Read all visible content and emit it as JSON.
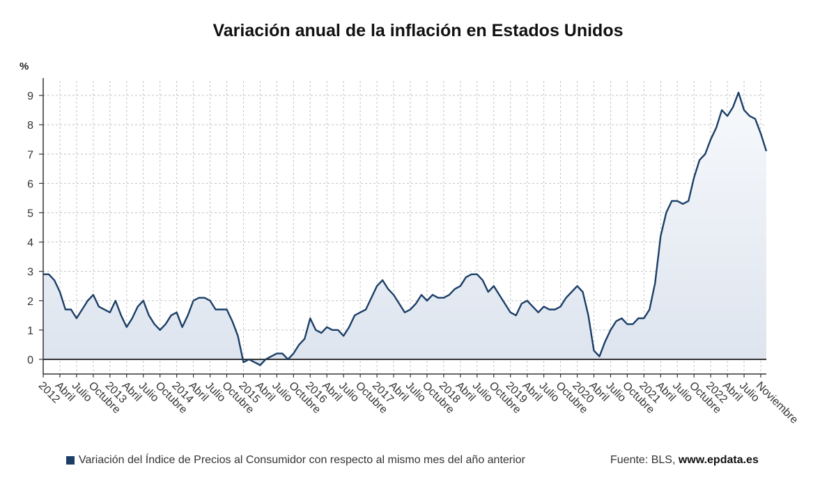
{
  "chart_data": {
    "type": "area",
    "title": "Variación anual de la inflación en Estados Unidos",
    "ylabel": "%",
    "xlabel": "",
    "ylim": [
      -0.5,
      9.5
    ],
    "y_ticks": [
      0,
      1,
      2,
      3,
      4,
      5,
      6,
      7,
      8,
      9
    ],
    "grid": true,
    "legend_placement": "bottom-left",
    "x_start": "2012-01",
    "x_end": "2022-11",
    "x_tick_labels": [
      "2012",
      "Abril",
      "Julio",
      "Octubre",
      "2013",
      "Abril",
      "Julio",
      "Octubre",
      "2014",
      "Abril",
      "Julio",
      "Octubre",
      "2015",
      "Abril",
      "Julio",
      "Octubre",
      "2016",
      "Abril",
      "Julio",
      "Octubre",
      "2017",
      "Abril",
      "Julio",
      "Octubre",
      "2018",
      "Abril",
      "Julio",
      "Octubre",
      "2019",
      "Abril",
      "Julio",
      "Octubre",
      "2020",
      "Abril",
      "Julio",
      "Octubre",
      "2021",
      "Abril",
      "Julio",
      "Octubre",
      "2022",
      "Abril",
      "Julio",
      "Noviembre"
    ],
    "series": [
      {
        "name": "Variación del Índice de Precios al Consumidor con respecto al mismo mes del año anterior",
        "color": "#1a3e66",
        "values": [
          2.9,
          2.9,
          2.7,
          2.3,
          1.7,
          1.7,
          1.4,
          1.7,
          2.0,
          2.2,
          1.8,
          1.7,
          1.6,
          2.0,
          1.5,
          1.1,
          1.4,
          1.8,
          2.0,
          1.5,
          1.2,
          1.0,
          1.2,
          1.5,
          1.6,
          1.1,
          1.5,
          2.0,
          2.1,
          2.1,
          2.0,
          1.7,
          1.7,
          1.7,
          1.3,
          0.8,
          -0.1,
          0.0,
          -0.1,
          -0.2,
          0.0,
          0.1,
          0.2,
          0.2,
          0.0,
          0.2,
          0.5,
          0.7,
          1.4,
          1.0,
          0.9,
          1.1,
          1.0,
          1.0,
          0.8,
          1.1,
          1.5,
          1.6,
          1.7,
          2.1,
          2.5,
          2.7,
          2.4,
          2.2,
          1.9,
          1.6,
          1.7,
          1.9,
          2.2,
          2.0,
          2.2,
          2.1,
          2.1,
          2.2,
          2.4,
          2.5,
          2.8,
          2.9,
          2.9,
          2.7,
          2.3,
          2.5,
          2.2,
          1.9,
          1.6,
          1.5,
          1.9,
          2.0,
          1.8,
          1.6,
          1.8,
          1.7,
          1.7,
          1.8,
          2.1,
          2.3,
          2.5,
          2.3,
          1.5,
          0.3,
          0.1,
          0.6,
          1.0,
          1.3,
          1.4,
          1.2,
          1.2,
          1.4,
          1.4,
          1.7,
          2.6,
          4.2,
          5.0,
          5.4,
          5.4,
          5.3,
          5.4,
          6.2,
          6.8,
          7.0,
          7.5,
          7.9,
          8.5,
          8.3,
          8.6,
          9.1,
          8.5,
          8.3,
          8.2,
          7.7,
          7.1
        ]
      }
    ]
  },
  "legend": {
    "label": "Variación del Índice de Precios al Consumidor con respecto al mismo mes del año anterior",
    "color": "#1a3e66"
  },
  "source": {
    "prefix": "Fuente: BLS, ",
    "site": "www.epdata.es"
  }
}
